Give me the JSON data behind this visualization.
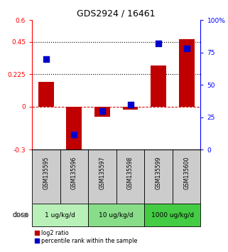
{
  "title": "GDS2924 / 16461",
  "categories": [
    "GSM135595",
    "GSM135596",
    "GSM135597",
    "GSM135598",
    "GSM135599",
    "GSM135600"
  ],
  "log2_ratio": [
    0.17,
    -0.35,
    -0.07,
    -0.02,
    0.285,
    0.47
  ],
  "percentile_rank": [
    70,
    12,
    30,
    35,
    82,
    78
  ],
  "ylim_left": [
    -0.3,
    0.6
  ],
  "ylim_right": [
    0,
    100
  ],
  "yticks_left": [
    -0.3,
    0,
    0.225,
    0.45,
    0.6
  ],
  "ytick_labels_left": [
    "-0.3",
    "0",
    "0.225",
    "0.45",
    "0.6"
  ],
  "yticks_right": [
    0,
    25,
    50,
    75,
    100
  ],
  "ytick_labels_right": [
    "0",
    "25",
    "50",
    "75",
    "100%"
  ],
  "hlines": [
    0.45,
    0.225
  ],
  "dose_groups": [
    {
      "label": "1 ug/kg/d",
      "color": "#b8f0b8"
    },
    {
      "label": "10 ug/kg/d",
      "color": "#88dd88"
    },
    {
      "label": "1000 ug/kg/d",
      "color": "#44cc44"
    }
  ],
  "bar_color": "#c00000",
  "dot_color": "#0000cc",
  "bar_width": 0.55,
  "dot_size": 28,
  "zero_line_color": "#cc0000",
  "sample_bg_color": "#cccccc",
  "title_fontsize": 9
}
